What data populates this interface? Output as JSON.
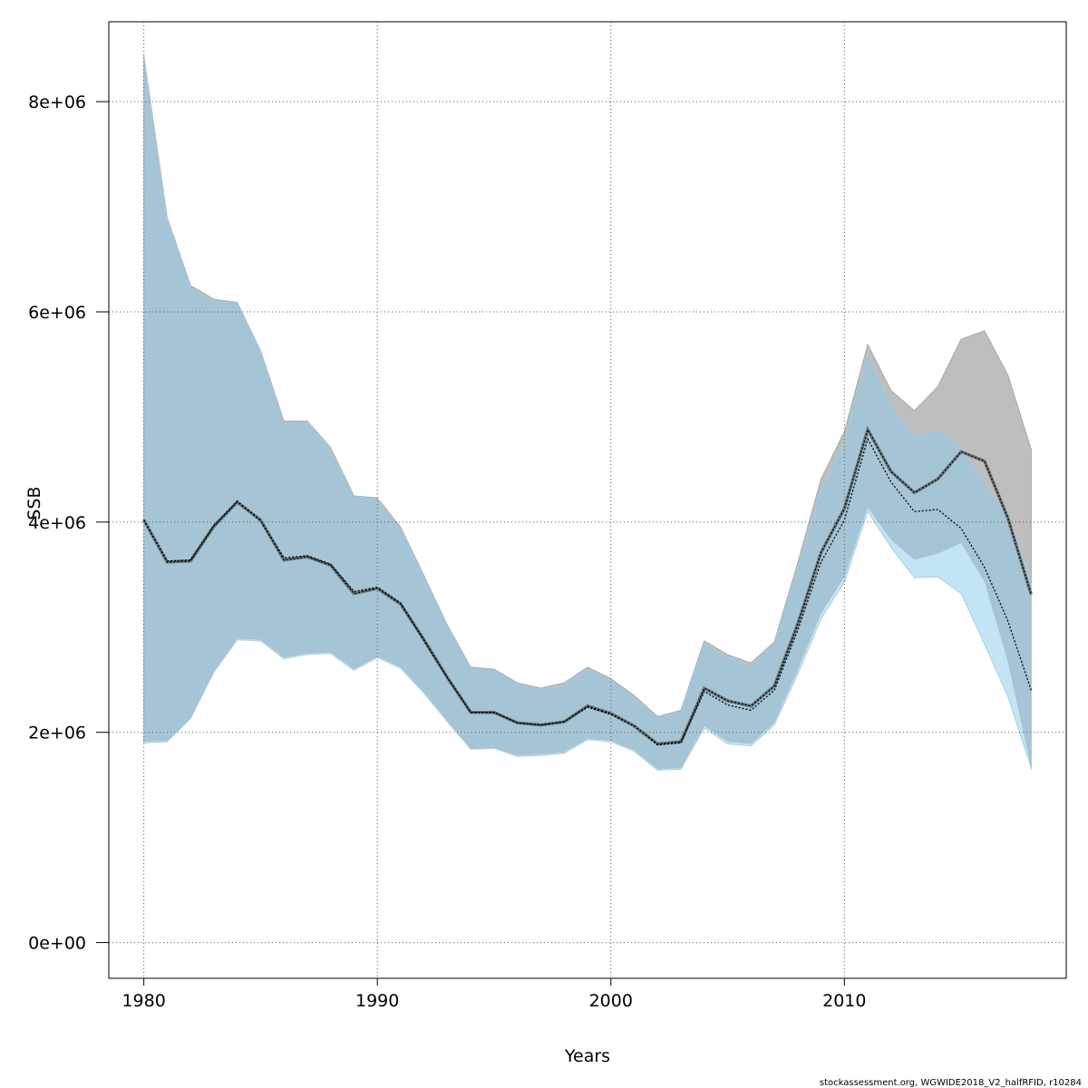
{
  "chart_data": {
    "type": "area",
    "xlabel": "Years",
    "ylabel": "SSB",
    "xlim": [
      1978.5,
      2019.5
    ],
    "ylim": [
      -340000,
      8760000
    ],
    "x_ticks": [
      1980,
      1990,
      2000,
      2010
    ],
    "x_tick_labels": [
      "1980",
      "1990",
      "2000",
      "2010"
    ],
    "y_ticks": [
      0,
      2000000,
      4000000,
      6000000,
      8000000
    ],
    "y_tick_labels": [
      "0e+00",
      "2e+06",
      "4e+06",
      "6e+06",
      "8e+06"
    ],
    "grid": true,
    "footer": "stockassessment.org, WGWIDE2018_V2_halfRFID, r10284",
    "colors": {
      "grey_band": "#bebebe",
      "blue_band": "#c3e4f4",
      "overlap": "#a5c5d6",
      "line": "#000000"
    },
    "series": [
      {
        "years": [
          1980,
          1981,
          1982,
          1983,
          1984,
          1985,
          1986,
          1987,
          1988,
          1989,
          1990,
          1991,
          1992,
          1993,
          1994,
          1995,
          1996,
          1997,
          1998,
          1999,
          2000,
          2001,
          2002,
          2003,
          2004,
          2005,
          2006,
          2007,
          2008,
          2009,
          2010,
          2011,
          2012,
          2013,
          2014,
          2015,
          2016,
          2017,
          2018
        ],
        "estimate": [
          4020000,
          3620000,
          3630000,
          3960000,
          4190000,
          4020000,
          3640000,
          3670000,
          3590000,
          3320000,
          3370000,
          3220000,
          2880000,
          2520000,
          2190000,
          2190000,
          2090000,
          2070000,
          2100000,
          2250000,
          2180000,
          2060000,
          1890000,
          1910000,
          2420000,
          2300000,
          2250000,
          2440000,
          3030000,
          3710000,
          4130000,
          4880000,
          4480000,
          4280000,
          4410000,
          4670000,
          4580000,
          4040000,
          3310000
        ],
        "lower": [
          1910000,
          1920000,
          2140000,
          2580000,
          2890000,
          2880000,
          2710000,
          2750000,
          2760000,
          2600000,
          2720000,
          2620000,
          2380000,
          2110000,
          1840000,
          1850000,
          1780000,
          1790000,
          1810000,
          1940000,
          1920000,
          1830000,
          1650000,
          1660000,
          2060000,
          1910000,
          1890000,
          2090000,
          2590000,
          3130000,
          3480000,
          4140000,
          3830000,
          3640000,
          3700000,
          3800000,
          3430000,
          2670000,
          1650000
        ],
        "upper": [
          8440000,
          6900000,
          6250000,
          6120000,
          6090000,
          5630000,
          4960000,
          4960000,
          4710000,
          4250000,
          4230000,
          3950000,
          3490000,
          3020000,
          2620000,
          2600000,
          2470000,
          2420000,
          2470000,
          2620000,
          2510000,
          2350000,
          2150000,
          2210000,
          2870000,
          2740000,
          2660000,
          2860000,
          3610000,
          4410000,
          4860000,
          5690000,
          5250000,
          5060000,
          5290000,
          5740000,
          5820000,
          5400000,
          4690000
        ]
      },
      {
        "years": [
          1980,
          1981,
          1982,
          1983,
          1984,
          1985,
          1986,
          1987,
          1988,
          1989,
          1990,
          1991,
          1992,
          1993,
          1994,
          1995,
          1996,
          1997,
          1998,
          1999,
          2000,
          2001,
          2002,
          2003,
          2004,
          2005,
          2006,
          2007,
          2008,
          2009,
          2010,
          2011,
          2012,
          2013,
          2014,
          2015,
          2016,
          2017,
          2018
        ],
        "estimate": [
          4020000,
          3630000,
          3640000,
          3970000,
          4200000,
          4010000,
          3660000,
          3680000,
          3600000,
          3340000,
          3380000,
          3230000,
          2870000,
          2520000,
          2190000,
          2190000,
          2090000,
          2070000,
          2100000,
          2240000,
          2170000,
          2060000,
          1880000,
          1900000,
          2390000,
          2260000,
          2210000,
          2400000,
          2970000,
          3620000,
          4020000,
          4790000,
          4380000,
          4100000,
          4120000,
          3940000,
          3570000,
          3060000,
          2400000
        ],
        "lower": [
          1900000,
          1910000,
          2130000,
          2570000,
          2880000,
          2870000,
          2700000,
          2740000,
          2750000,
          2590000,
          2710000,
          2610000,
          2370000,
          2100000,
          1840000,
          1850000,
          1770000,
          1780000,
          1800000,
          1930000,
          1910000,
          1820000,
          1640000,
          1650000,
          2040000,
          1890000,
          1870000,
          2070000,
          2550000,
          3080000,
          3430000,
          4100000,
          3760000,
          3470000,
          3480000,
          3320000,
          2840000,
          2340000,
          1660000
        ],
        "upper": [
          8430000,
          6890000,
          6230000,
          6100000,
          6080000,
          5620000,
          4940000,
          4950000,
          4700000,
          4240000,
          4220000,
          3930000,
          3480000,
          3010000,
          2610000,
          2590000,
          2460000,
          2410000,
          2440000,
          2600000,
          2500000,
          2330000,
          2140000,
          2200000,
          2840000,
          2720000,
          2630000,
          2840000,
          3560000,
          4300000,
          4750000,
          5600000,
          5110000,
          4810000,
          4870000,
          4710000,
          4340000,
          4070000,
          3400000
        ]
      }
    ]
  }
}
